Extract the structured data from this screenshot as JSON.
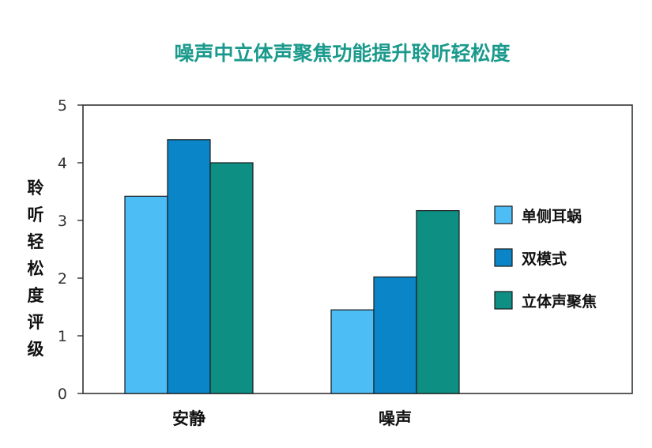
{
  "chart_data": {
    "type": "bar",
    "title": "噪声中立体声聚焦功能提升聆听轻松度",
    "ylabel": "聆听轻松度评级",
    "xlabel": "",
    "ylim": [
      0,
      5
    ],
    "yticks": [
      0,
      1,
      2,
      3,
      4,
      5
    ],
    "categories": [
      "安静",
      "噪声"
    ],
    "series": [
      {
        "name": "单侧耳蜗",
        "color": "#4dbdf5",
        "values": [
          3.42,
          1.45
        ]
      },
      {
        "name": "双模式",
        "color": "#0a86c8",
        "values": [
          4.4,
          2.02
        ]
      },
      {
        "name": "立体声聚焦",
        "color": "#0d8f84",
        "values": [
          4.0,
          3.17
        ]
      }
    ],
    "grid": false,
    "legend_position": "right",
    "title_color": "#1a9a8c"
  }
}
